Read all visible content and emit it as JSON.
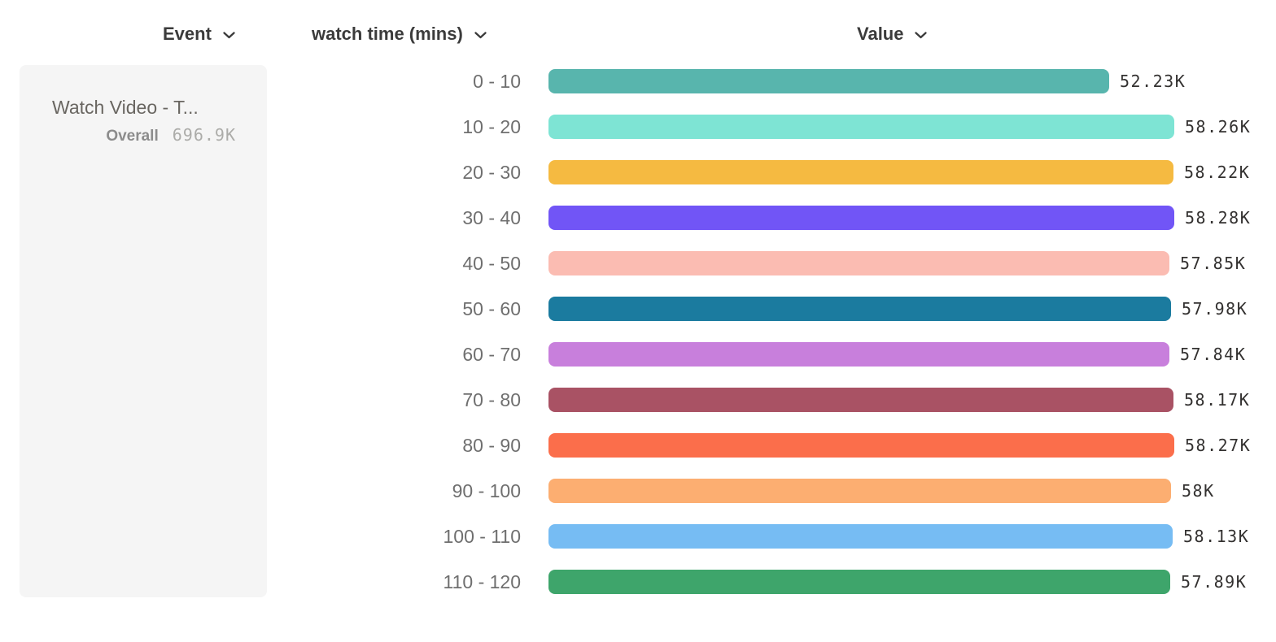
{
  "header": {
    "columns": [
      {
        "label": "Event"
      },
      {
        "label": "watch time (mins)"
      },
      {
        "label": "Value"
      }
    ]
  },
  "event_panel": {
    "title": "Watch Video - T...",
    "overall_label": "Overall",
    "overall_value": "696.9K"
  },
  "chart_data": {
    "type": "bar",
    "orientation": "horizontal",
    "title": "",
    "xlabel": "Value",
    "ylabel": "watch time (mins)",
    "categories": [
      "0 - 10",
      "10 - 20",
      "20 - 30",
      "30 - 40",
      "40 - 50",
      "50 - 60",
      "60 - 70",
      "70 - 80",
      "80 - 90",
      "90 - 100",
      "100 - 110",
      "110 - 120"
    ],
    "values": [
      52230,
      58260,
      58220,
      58280,
      57850,
      57980,
      57840,
      58170,
      58270,
      58000,
      58130,
      57890
    ],
    "value_labels": [
      "52.23K",
      "58.26K",
      "58.22K",
      "58.28K",
      "57.85K",
      "57.98K",
      "57.84K",
      "58.17K",
      "58.27K",
      "58K",
      "58.13K",
      "57.89K"
    ],
    "bar_colors": [
      "#58b5ad",
      "#7ee4d4",
      "#f5ba41",
      "#7155f6",
      "#fbbcb2",
      "#1b7b9f",
      "#c87fdc",
      "#a95264",
      "#fb6e4b",
      "#fcae71",
      "#76bcf3",
      "#3ea56b"
    ],
    "xlim": [
      0,
      58280
    ],
    "grid": false,
    "legend": false
  },
  "colors": {
    "header_text": "#3b3b3b",
    "row_label_text": "#6f6f6f",
    "value_label_text": "#333130",
    "card_background": "#f5f5f5"
  }
}
